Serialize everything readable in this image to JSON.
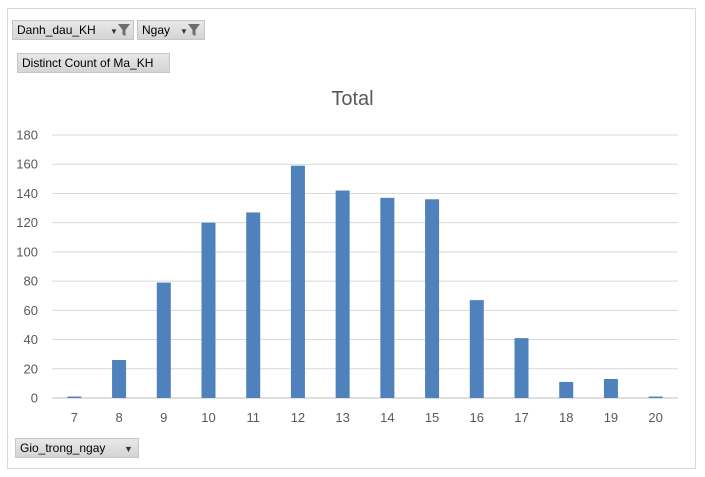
{
  "filters": {
    "danh_dau_kh": "Danh_dau_KH",
    "ngay": "Ngay"
  },
  "measure_label": "Distinct Count of Ma_KH",
  "axis_field_label": "Gio_trong_ngay",
  "icons": {
    "dropdown": "chevron-down-icon",
    "filter": "filter-funnel-icon"
  },
  "chart_data": {
    "type": "bar",
    "title": "Total",
    "categories": [
      "7",
      "8",
      "9",
      "10",
      "11",
      "12",
      "13",
      "14",
      "15",
      "16",
      "17",
      "18",
      "19",
      "20"
    ],
    "values": [
      1,
      26,
      79,
      120,
      127,
      159,
      142,
      137,
      136,
      67,
      41,
      11,
      13,
      1
    ],
    "ylim": [
      0,
      180
    ],
    "yticks": [
      0,
      20,
      40,
      60,
      80,
      100,
      120,
      140,
      160,
      180
    ],
    "grid": true,
    "bar_color": "#4f81bd",
    "legend": "none"
  }
}
